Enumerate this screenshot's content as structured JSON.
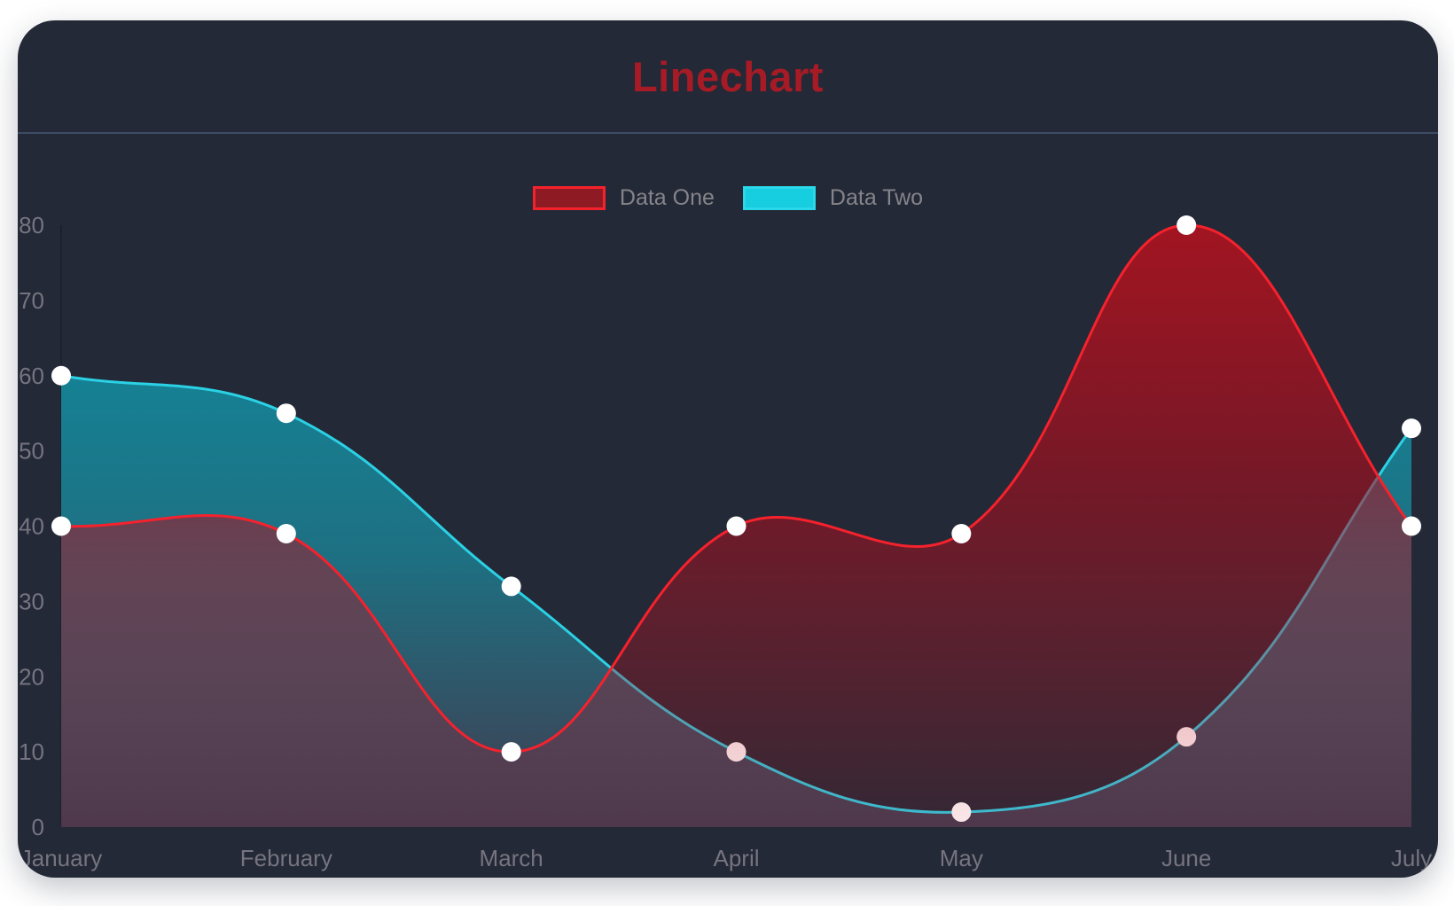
{
  "header": {
    "title": "Linechart"
  },
  "legend": {
    "items": [
      {
        "label": "Data One",
        "swatch_fill": "#8e1b24",
        "swatch_border": "#f5222d"
      },
      {
        "label": "Data Two",
        "swatch_fill": "#17cde0",
        "swatch_border": "#2bd8ea"
      }
    ]
  },
  "chart_data": {
    "type": "line",
    "title": "Linechart",
    "categories": [
      "January",
      "February",
      "March",
      "April",
      "May",
      "June",
      "July"
    ],
    "series": [
      {
        "name": "Data One",
        "values": [
          40,
          39,
          10,
          40,
          39,
          80,
          40
        ],
        "line_color": "#f5222d",
        "point_color": "#ffffff",
        "fill_stops": [
          {
            "offset": 0,
            "color": "#a81420",
            "opacity": 0.95
          },
          {
            "offset": 0.45,
            "color": "#b30c1c",
            "opacity": 0.55
          },
          {
            "offset": 1,
            "color": "#c41828",
            "opacity": 0.1
          }
        ]
      },
      {
        "name": "Data Two",
        "values": [
          60,
          55,
          32,
          10,
          2,
          12,
          53
        ],
        "line_color": "#2bd1e4",
        "point_color": "#ffffff",
        "fill_stops": [
          {
            "offset": 0,
            "color": "#0f93a8",
            "opacity": 0.96
          },
          {
            "offset": 0.55,
            "color": "#1d7486",
            "opacity": 0.95
          },
          {
            "offset": 1,
            "color": "#443c50",
            "opacity": 0.95
          }
        ]
      }
    ],
    "xlabel": "",
    "ylabel": "",
    "ylim": [
      0,
      80
    ],
    "y_ticks": [
      0,
      10,
      20,
      30,
      40,
      50,
      60,
      70,
      80
    ],
    "grid": false,
    "legend_position": "top",
    "line_tension": 0.4,
    "point_radius": 11,
    "line_width": 3
  },
  "colors": {
    "page_bg": "#ffffff",
    "card_bg": "#232936",
    "title_text": "#a61b25",
    "divider": "#3f4a66",
    "axis_line": "#1c212c",
    "tick_text": "#767480",
    "legend_text": "#85848a"
  }
}
